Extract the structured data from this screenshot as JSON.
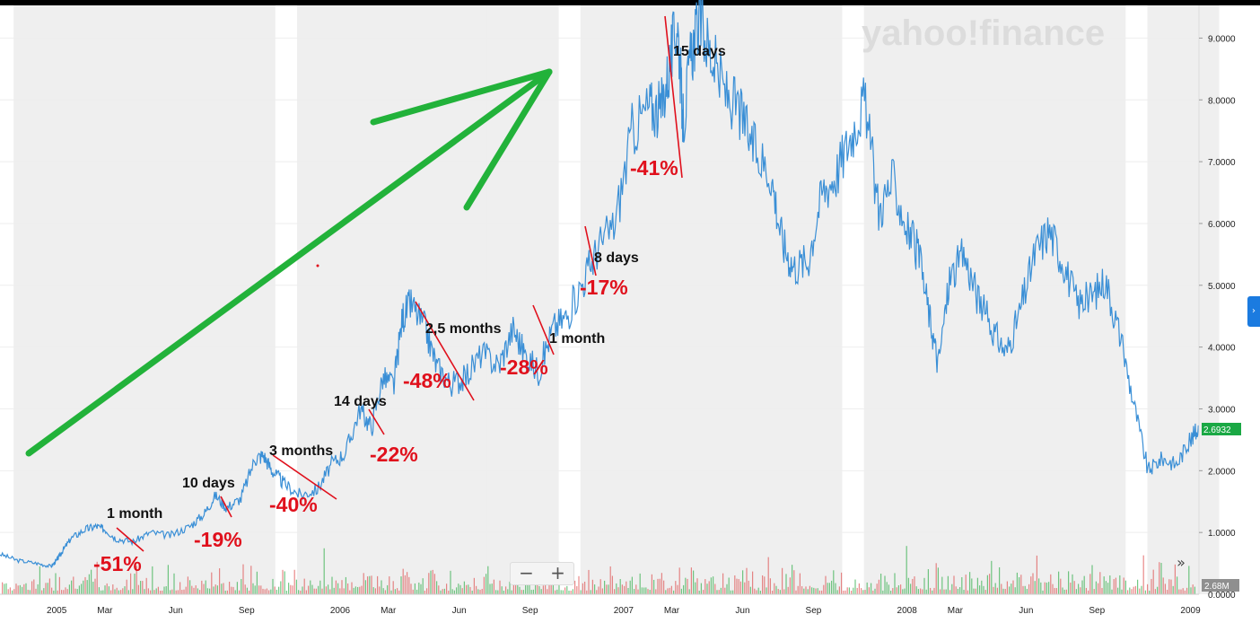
{
  "brand": "yahoo!finance",
  "controls": {
    "zoom_out": "−",
    "zoom_in": "+",
    "expand": "»",
    "side_tab": "›"
  },
  "colors": {
    "price_line": "#3a8fd6",
    "badge": "#1aa844",
    "arrow": "#22b23a",
    "drawdown_line": "#e0101c",
    "volume_up": "#38b050",
    "volume_down": "#e05555",
    "band": "#efefef"
  },
  "chart_data": {
    "type": "line",
    "ylim": [
      0,
      9.5
    ],
    "y_ticks": [
      "1.0000",
      "2.0000",
      "3.0000",
      "4.0000",
      "5.0000",
      "6.0000",
      "7.0000",
      "8.0000",
      "9.0000"
    ],
    "y_tick_values": [
      1,
      2,
      3,
      4,
      5,
      6,
      7,
      8,
      9
    ],
    "x_ticks": [
      "2005",
      "Mar",
      "Jun",
      "Sep",
      "2006",
      "Mar",
      "Jun",
      "Sep",
      "2007",
      "Mar",
      "Jun",
      "Sep",
      "2008",
      "Mar",
      "Jun",
      "Sep",
      "2009"
    ],
    "x_tick_values": [
      2005.0,
      2005.17,
      2005.42,
      2005.67,
      2006.0,
      2006.17,
      2006.42,
      2006.67,
      2007.0,
      2007.17,
      2007.42,
      2007.67,
      2008.0,
      2008.17,
      2008.42,
      2008.67,
      2009.0
    ],
    "xlim": [
      2004.8,
      2009.03
    ],
    "last_price_label": "2.6932",
    "volume_label": "2.68M",
    "series": [
      {
        "x": [
          2004.8,
          2004.86,
          2004.93,
          2004.98,
          2005.0,
          2005.02,
          2005.05,
          2005.1,
          2005.14,
          2005.17,
          2005.21,
          2005.27,
          2005.33,
          2005.4,
          2005.47,
          2005.52,
          2005.56,
          2005.6,
          2005.65,
          2005.7,
          2005.73,
          2005.76,
          2005.8,
          2005.86,
          2005.92,
          2005.97,
          2006.02,
          2006.07,
          2006.11,
          2006.15,
          2006.19,
          2006.22,
          2006.25,
          2006.3,
          2006.34,
          2006.39,
          2006.44,
          2006.5,
          2006.56,
          2006.61,
          2006.65,
          2006.7,
          2006.75,
          2006.8,
          2006.86,
          2006.91,
          2006.97,
          2007.03,
          2007.09,
          2007.13,
          2007.16,
          2007.19,
          2007.21,
          2007.24,
          2007.27,
          2007.31,
          2007.36,
          2007.41,
          2007.46,
          2007.52,
          2007.56,
          2007.6,
          2007.65,
          2007.7,
          2007.75,
          2007.8,
          2007.85,
          2007.9,
          2007.95,
          2008.0,
          2008.04,
          2008.08,
          2008.11,
          2008.15,
          2008.2,
          2008.25,
          2008.3,
          2008.35,
          2008.4,
          2008.45,
          2008.5,
          2008.55,
          2008.6,
          2008.65,
          2008.7,
          2008.75,
          2008.8,
          2008.85,
          2008.9,
          2008.95,
          2009.0,
          2009.03
        ],
        "y": [
          0.65,
          0.55,
          0.5,
          0.45,
          0.55,
          0.7,
          0.9,
          1.05,
          1.1,
          1.05,
          0.9,
          0.85,
          1.0,
          0.95,
          1.1,
          1.3,
          1.6,
          1.4,
          1.55,
          2.2,
          2.25,
          2.0,
          1.8,
          1.6,
          1.7,
          2.1,
          2.3,
          3.0,
          2.7,
          3.5,
          3.4,
          4.5,
          4.7,
          4.3,
          3.7,
          3.4,
          3.5,
          3.9,
          3.7,
          4.3,
          3.9,
          3.6,
          4.3,
          4.5,
          5.1,
          5.6,
          6.0,
          7.5,
          7.9,
          7.8,
          8.5,
          9.3,
          7.6,
          8.8,
          9.3,
          8.7,
          8.1,
          7.8,
          7.2,
          6.8,
          5.7,
          5.3,
          5.4,
          6.5,
          6.8,
          7.4,
          8.0,
          6.2,
          6.7,
          5.9,
          5.5,
          4.5,
          3.7,
          5.1,
          5.5,
          4.8,
          4.3,
          3.9,
          4.6,
          5.5,
          5.9,
          5.4,
          4.7,
          4.8,
          5.1,
          4.2,
          3.1,
          2.0,
          2.2,
          2.1,
          2.5,
          2.7
        ]
      }
    ],
    "annotations": [
      {
        "duration": "1 month",
        "drop": "-51%"
      },
      {
        "duration": "10 days",
        "drop": "-19%"
      },
      {
        "duration": "3 months",
        "drop": "-40%"
      },
      {
        "duration": "14 days",
        "drop": "-22%"
      },
      {
        "duration": "2,5 months",
        "drop": "-48%"
      },
      {
        "duration": "1 month",
        "drop": "-28%"
      },
      {
        "duration": "8 days",
        "drop": "-17%"
      },
      {
        "duration": "15 days",
        "drop": "-41%"
      }
    ]
  }
}
